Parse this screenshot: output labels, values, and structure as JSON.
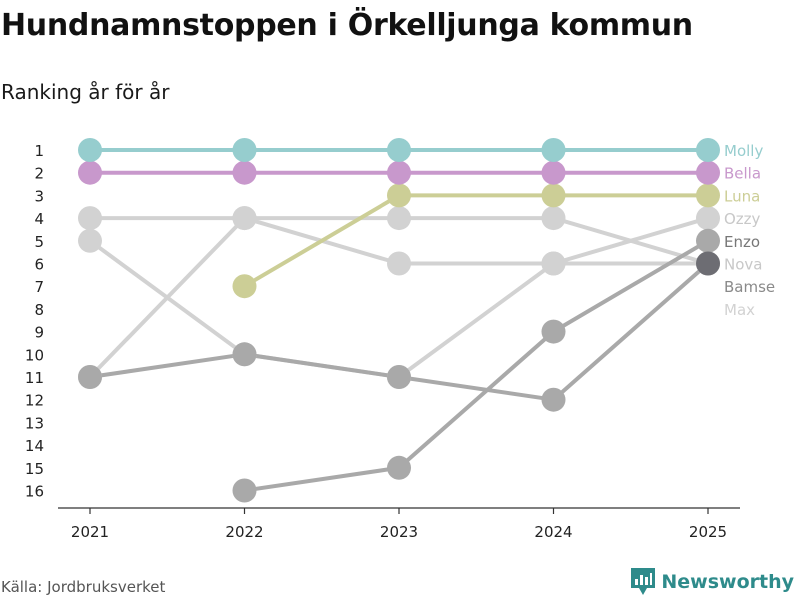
{
  "header": {
    "title": "Hundnamnstoppen i Örkelljunga kommun",
    "subtitle": "Ranking år för år"
  },
  "footer": {
    "source": "Källa: Jordbruksverket",
    "brand": "Newsworthy"
  },
  "colors": {
    "molly": "#96cdce",
    "bella": "#c898cc",
    "luna": "#ccce96",
    "light_grey": "#d2d2d2",
    "mid_grey": "#a9a9a9",
    "dark_grey": "#6d6d73",
    "axis": "#333333",
    "brand": "#2e8b8b"
  },
  "chart_data": {
    "type": "line",
    "title": "Hundnamnstoppen i Örkelljunga kommun",
    "subtitle": "Ranking år för år",
    "x": [
      "2021",
      "2022",
      "2023",
      "2024",
      "2025"
    ],
    "y_ticks": [
      "1",
      "2",
      "3",
      "4",
      "5",
      "6",
      "7",
      "8",
      "9",
      "10",
      "11",
      "12",
      "13",
      "14",
      "15",
      "16"
    ],
    "ylim": [
      1,
      16
    ],
    "y_inverted": true,
    "series": [
      {
        "name": "Max",
        "values": [
          11,
          4,
          4,
          4,
          6
        ],
        "color": "#d2d2d2",
        "label_color": "#d2d2d2",
        "label_rank": 8
      },
      {
        "name": "Ozzy",
        "values": [
          5,
          10,
          11,
          6,
          4
        ],
        "color": "#d2d2d2",
        "label_color": "#c8c8c8",
        "label_rank": 4
      },
      {
        "name": "Nova",
        "values": [
          4,
          4,
          6,
          6,
          6
        ],
        "color": "#d2d2d2",
        "label_color": "#c8c8c8",
        "label_rank": 6
      },
      {
        "name": "Bamse",
        "values": [
          null,
          16,
          15,
          9,
          5
        ],
        "color": "#a9a9a9",
        "label_color": "#8a8a8a",
        "label_rank": 7
      },
      {
        "name": "Enzo",
        "values": [
          11,
          10,
          11,
          12,
          6
        ],
        "color": "#a9a9a9",
        "label_color": "#777777",
        "label_rank": 5,
        "end_color": "#6d6d73"
      },
      {
        "name": "Luna",
        "values": [
          null,
          7,
          3,
          3,
          3
        ],
        "color": "#ccce96",
        "label_color": "#ccce96",
        "label_rank": 3
      },
      {
        "name": "Bella",
        "values": [
          2,
          2,
          2,
          2,
          2
        ],
        "color": "#c898cc",
        "label_color": "#c898cc",
        "label_rank": 2
      },
      {
        "name": "Molly",
        "values": [
          1,
          1,
          1,
          1,
          1
        ],
        "color": "#96cdce",
        "label_color": "#96cdce",
        "label_rank": 1
      }
    ]
  }
}
